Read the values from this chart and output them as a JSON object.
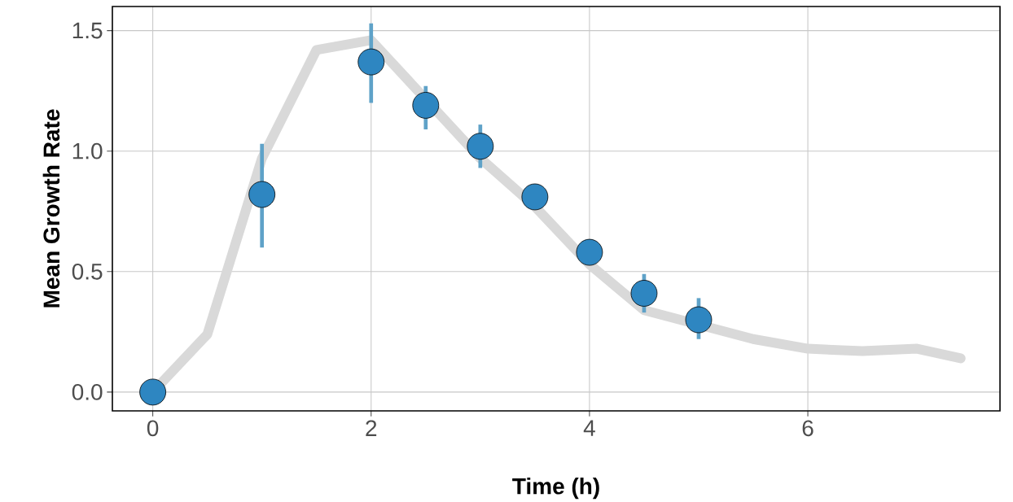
{
  "chart_data": {
    "type": "line",
    "xlabel": "Time (h)",
    "ylabel": "Mean Growth Rate",
    "xlim": [
      -0.37,
      7.76
    ],
    "ylim": [
      -0.078,
      1.6
    ],
    "xticks": [
      0,
      2,
      4,
      6
    ],
    "yticks": [
      {
        "value": 0,
        "label": "0.0"
      },
      {
        "value": 0.5,
        "label": "0.5"
      },
      {
        "value": 1.0,
        "label": "1.0"
      },
      {
        "value": 1.5,
        "label": "1.5"
      }
    ],
    "grid": true,
    "marker": "circle",
    "series": [
      {
        "color": "#d9d9d9",
        "marker": "none",
        "x": [
          0,
          0.5,
          1.0,
          1.5,
          2.0,
          3.0,
          3.5,
          4.0,
          4.5,
          5.5,
          6.0,
          6.5,
          7.0,
          7.4
        ],
        "values": [
          0,
          0.24,
          0.97,
          1.42,
          1.46,
          0.97,
          0.77,
          0.53,
          0.34,
          0.22,
          0.18,
          0.17,
          0.18,
          0.14
        ]
      },
      {
        "type": "scatter",
        "color": "#2e86c1",
        "x": [
          0,
          1,
          2,
          2.5,
          3,
          3.5,
          4,
          4.5,
          5
        ],
        "values": [
          0,
          0.82,
          1.37,
          1.19,
          1.02,
          0.81,
          0.58,
          0.41,
          0.3
        ],
        "errors": [
          null,
          [
            0.6,
            1.03
          ],
          [
            1.2,
            1.53
          ],
          [
            1.09,
            1.27
          ],
          [
            0.93,
            1.11
          ],
          null,
          null,
          [
            0.33,
            0.49
          ],
          [
            0.22,
            0.39
          ]
        ]
      }
    ]
  }
}
